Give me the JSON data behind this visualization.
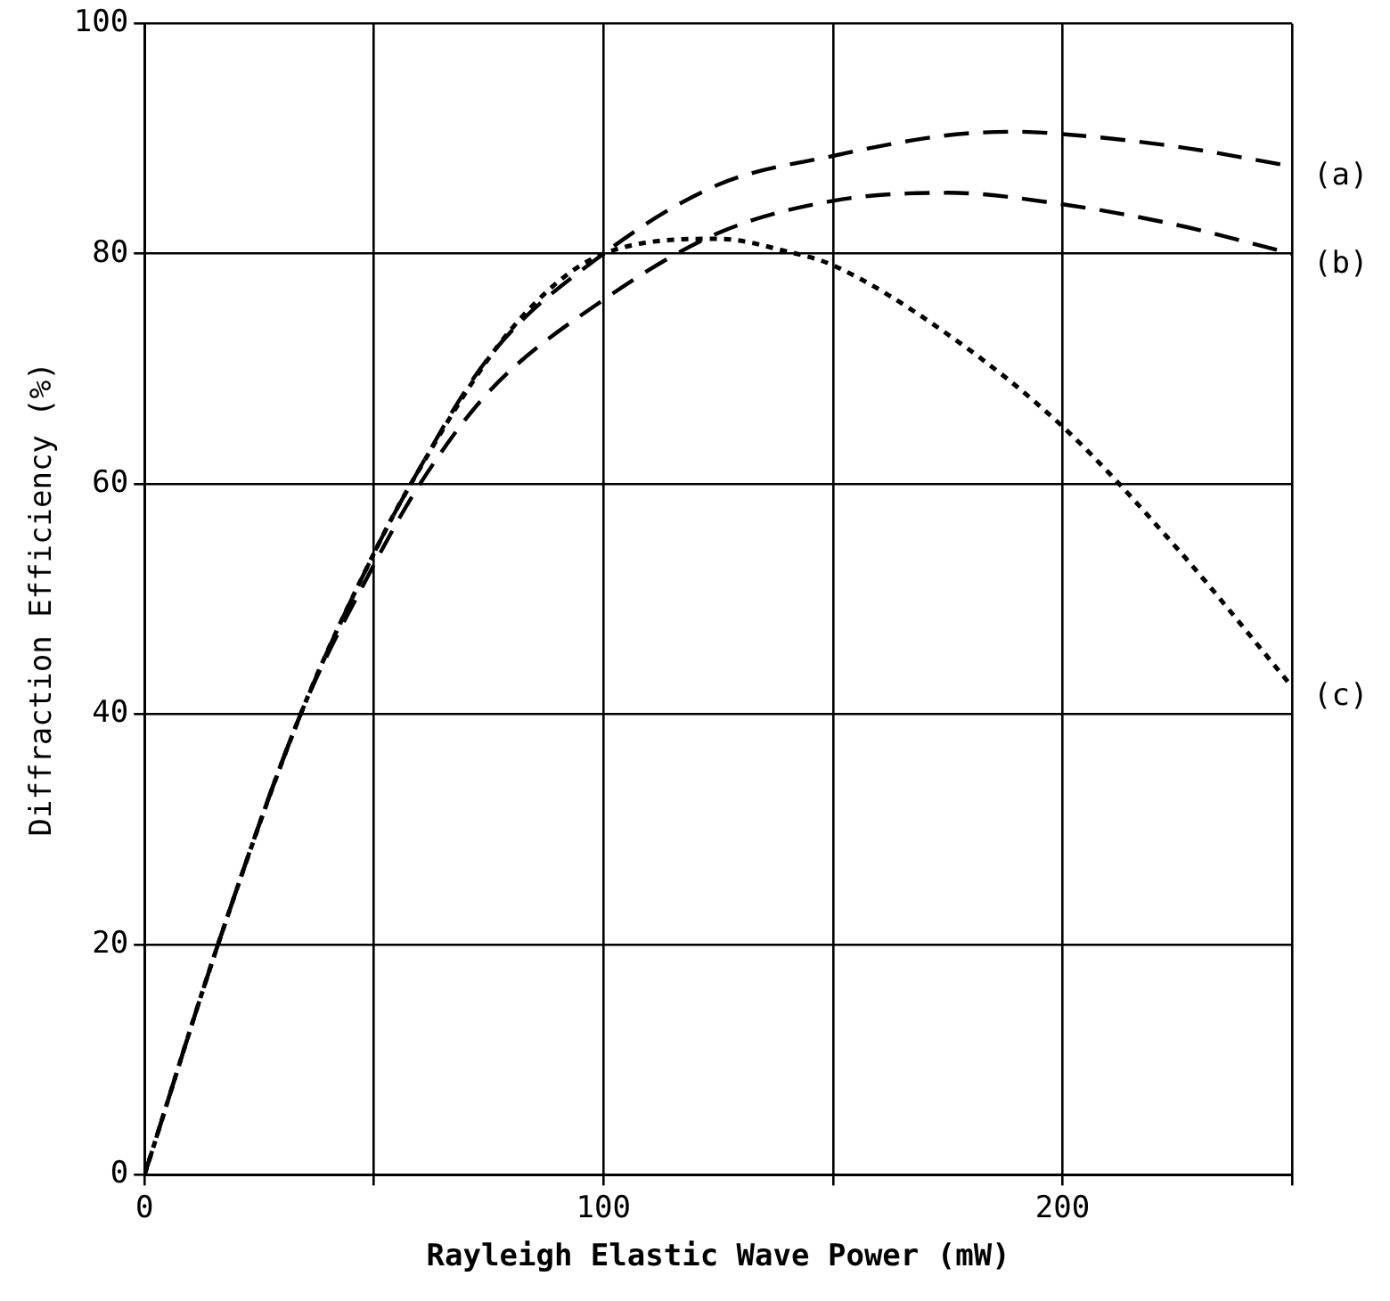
{
  "chart_data": {
    "type": "line",
    "xlabel": "Rayleigh Elastic Wave Power (mW)",
    "ylabel": "Diffraction Efficiency (%)",
    "xlim": [
      0,
      250
    ],
    "xticks": [
      {
        "value": 0,
        "label": "0"
      },
      {
        "value": 50,
        "label": null
      },
      {
        "value": 100,
        "label": "100"
      },
      {
        "value": 150,
        "label": null
      },
      {
        "value": 200,
        "label": "200"
      },
      {
        "value": 250,
        "label": null
      }
    ],
    "ylim": [
      0,
      100
    ],
    "yticks": [
      0,
      20,
      40,
      60,
      80,
      100
    ],
    "grid": true,
    "legend": false,
    "marker": "none",
    "series": [
      {
        "name": "(a)",
        "color": "#000000",
        "line_style": "dashed",
        "x": [
          0,
          16,
          34,
          50,
          58,
          75,
          100,
          125,
          150,
          175,
          190,
          200,
          225,
          250
        ],
        "values": [
          0,
          20,
          40,
          54,
          60,
          71,
          80,
          86,
          88.5,
          90.3,
          90.6,
          90.4,
          89.3,
          87.6
        ]
      },
      {
        "name": "(b)",
        "color": "#000000",
        "line_style": "dashed",
        "x": [
          0,
          16,
          34,
          50,
          60,
          75,
          100,
          125,
          150,
          175,
          200,
          225,
          250
        ],
        "values": [
          0,
          20,
          40,
          53,
          60,
          68,
          76,
          81.8,
          84.6,
          85.3,
          84.3,
          82.5,
          80
        ]
      },
      {
        "name": "(c)",
        "color": "#000000",
        "line_style": "dotted",
        "x": [
          0,
          16,
          34,
          50,
          58,
          80,
          100,
          125,
          140,
          150,
          175,
          200,
          225,
          250
        ],
        "values": [
          0,
          20,
          40,
          54,
          60,
          73.5,
          80,
          81.3,
          80.2,
          79,
          73,
          65,
          54.4,
          42.4
        ]
      }
    ]
  }
}
